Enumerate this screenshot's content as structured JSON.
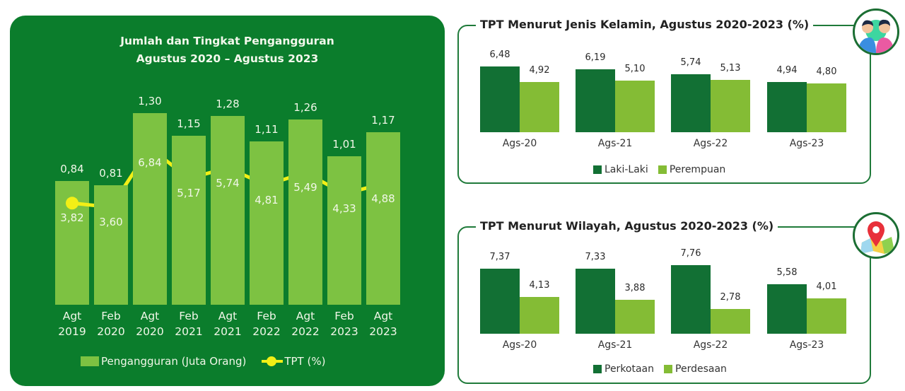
{
  "colors": {
    "panel_bg": "#0b7d2c",
    "bar_light": "#7dc242",
    "tpt_line": "#f2ef16",
    "dark_green": "#127034",
    "light_green": "#84bc35",
    "card_border": "#1f7a3a"
  },
  "main_chart": {
    "title_line1": "Jumlah dan Tingkat Pengangguran",
    "title_line2": "Agustus 2020 – Agustus 2023",
    "legend": {
      "bar": "Pengangguran (Juta Orang)",
      "line": "TPT (%)"
    }
  },
  "gender_chart": {
    "title": "TPT Menurut Jenis Kelamin, Agustus 2020-2023 (%)",
    "icon": "people-icon"
  },
  "region_chart": {
    "title": "TPT Menurut Wilayah, Agustus 2020-2023 (%)",
    "icon": "map-pin-icon"
  },
  "chart_data": [
    {
      "type": "bar+line",
      "title": "Jumlah dan Tingkat Pengangguran Agustus 2020 – Agustus 2023",
      "categories": [
        {
          "l1": "Agt",
          "l2": "2019"
        },
        {
          "l1": "Feb",
          "l2": "2020"
        },
        {
          "l1": "Agt",
          "l2": "2020"
        },
        {
          "l1": "Feb",
          "l2": "2021"
        },
        {
          "l1": "Agt",
          "l2": "2021"
        },
        {
          "l1": "Feb",
          "l2": "2022"
        },
        {
          "l1": "Agt",
          "l2": "2022"
        },
        {
          "l1": "Feb",
          "l2": "2023"
        },
        {
          "l1": "Agt",
          "l2": "2023"
        }
      ],
      "series": [
        {
          "name": "Pengangguran (Juta Orang)",
          "kind": "bar",
          "values": [
            0.84,
            0.81,
            1.3,
            1.15,
            1.28,
            1.11,
            1.26,
            1.01,
            1.17
          ],
          "labels": [
            "0,84",
            "0,81",
            "1,30",
            "1,15",
            "1,28",
            "1,11",
            "1,26",
            "1,01",
            "1,17"
          ]
        },
        {
          "name": "TPT (%)",
          "kind": "line",
          "values": [
            3.82,
            3.6,
            6.84,
            5.17,
            5.74,
            4.81,
            5.49,
            4.33,
            4.88
          ],
          "labels": [
            "3,82",
            "3,60",
            "6,84",
            "5,17",
            "5,74",
            "4,81",
            "5,49",
            "4,33",
            "4,88"
          ]
        }
      ],
      "legend_position": "bottom",
      "grid": false
    },
    {
      "type": "bar",
      "title": "TPT Menurut Jenis Kelamin, Agustus 2020-2023 (%)",
      "categories": [
        "Ags-20",
        "Ags-21",
        "Ags-22",
        "Ags-23"
      ],
      "series": [
        {
          "name": "Laki-Laki",
          "values": [
            6.48,
            6.19,
            5.74,
            4.94
          ],
          "labels": [
            "6,48",
            "6,19",
            "5,74",
            "4,94"
          ]
        },
        {
          "name": "Perempuan",
          "values": [
            4.92,
            5.1,
            5.13,
            4.8
          ],
          "labels": [
            "4,92",
            "5,10",
            "5,13",
            "4,80"
          ]
        }
      ],
      "legend_position": "bottom",
      "grid": false
    },
    {
      "type": "bar",
      "title": "TPT Menurut Wilayah, Agustus 2020-2023 (%)",
      "categories": [
        "Ags-20",
        "Ags-21",
        "Ags-22",
        "Ags-23"
      ],
      "series": [
        {
          "name": "Perkotaan",
          "values": [
            7.37,
            7.33,
            7.76,
            5.58
          ],
          "labels": [
            "7,37",
            "7,33",
            "7,76",
            "5,58"
          ]
        },
        {
          "name": "Perdesaan",
          "values": [
            4.13,
            3.88,
            2.78,
            4.01
          ],
          "labels": [
            "4,13",
            "3,88",
            "2,78",
            "4,01"
          ]
        }
      ],
      "legend_position": "bottom",
      "grid": false
    }
  ]
}
